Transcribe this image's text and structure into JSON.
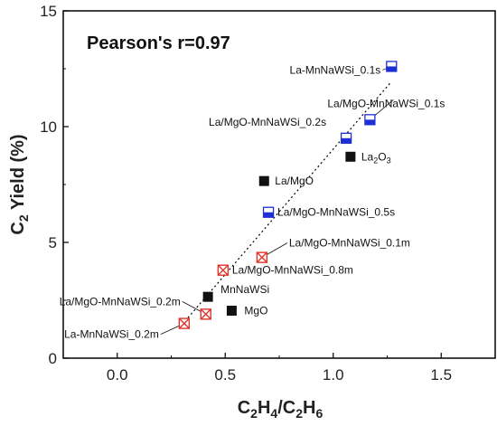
{
  "chart_data": {
    "type": "scatter",
    "title": "",
    "annotation_text": "Pearson's r=0.97",
    "xlabel": {
      "main": "C",
      "sub1": "2",
      "mid1": "H",
      "sub2": "4",
      "mid2": "/C",
      "sub3": "2",
      "mid3": "H",
      "sub4": "6"
    },
    "ylabel": {
      "main": "C",
      "sub": "2",
      "rest": " Yield (%)"
    },
    "xlim": [
      -0.25,
      1.75
    ],
    "ylim": [
      0,
      15
    ],
    "xticks": [
      "0.0",
      "0.5",
      "1.0",
      "1.5"
    ],
    "xtick_values": [
      0.0,
      0.5,
      1.0,
      1.5
    ],
    "yticks": [
      "0",
      "5",
      "10",
      "15"
    ],
    "ytick_values": [
      0,
      5,
      10,
      15
    ],
    "trendline": {
      "x": [
        0.3,
        1.27
      ],
      "y": [
        1.45,
        11.95
      ],
      "style": "dotted",
      "color": "#000000"
    },
    "points": [
      {
        "x": 1.27,
        "y": 12.6,
        "marker": "half-blue",
        "label": "La-MnNaWSi_0.1s",
        "sub": ""
      },
      {
        "x": 1.17,
        "y": 10.3,
        "marker": "half-blue",
        "label": "La/MgO-MnNaWSi_0.1s",
        "sub": ""
      },
      {
        "x": 1.06,
        "y": 9.5,
        "marker": "half-blue",
        "label": "La/MgO-MnNaWSi_0.2s",
        "sub": ""
      },
      {
        "x": 1.08,
        "y": 8.7,
        "marker": "black-square",
        "label": "La",
        "sub": "2",
        "label2": "O",
        "sub2": "3"
      },
      {
        "x": 0.68,
        "y": 7.65,
        "marker": "black-square",
        "label": "La/MgO",
        "sub": ""
      },
      {
        "x": 0.7,
        "y": 6.3,
        "marker": "half-blue",
        "label": "La/MgO-MnNaWSi_0.5s",
        "sub": ""
      },
      {
        "x": 0.67,
        "y": 4.35,
        "marker": "red-x",
        "label": "La/MgO-MnNaWSi_0.1m",
        "sub": ""
      },
      {
        "x": 0.49,
        "y": 3.8,
        "marker": "red-x",
        "label": "La/MgO-MnNaWSi_0.8m",
        "sub": ""
      },
      {
        "x": 0.42,
        "y": 2.65,
        "marker": "black-square",
        "label": "MnNaWSi",
        "sub": ""
      },
      {
        "x": 0.53,
        "y": 2.05,
        "marker": "black-square",
        "label": "MgO",
        "sub": ""
      },
      {
        "x": 0.41,
        "y": 1.9,
        "marker": "red-x",
        "label": "La/MgO-MnNaWSi_0.2m",
        "sub": ""
      },
      {
        "x": 0.31,
        "y": 1.5,
        "marker": "red-x",
        "label": "La-MnNaWSi_0.2m",
        "sub": ""
      }
    ],
    "colors": {
      "blue": "#1f2fd6",
      "red": "#e0352b",
      "black": "#111111"
    },
    "grid": false,
    "legend": "none"
  }
}
